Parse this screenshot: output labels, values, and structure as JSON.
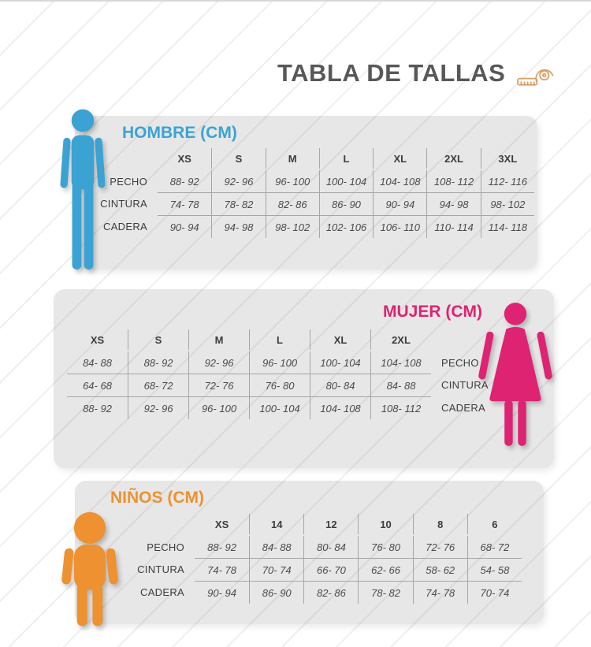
{
  "title": {
    "text": "TABLA DE TALLAS",
    "icon": "measuring-tape-icon"
  },
  "colors": {
    "men_accent": "#3AA3D3",
    "women_accent": "#DD2372",
    "kids_accent": "#EE9130",
    "panel_bg": "#e9e9e9",
    "title_text": "#58585a"
  },
  "sections": [
    {
      "id": "hombre",
      "heading": "HOMBRE (CM)",
      "figure": "man-figure-icon",
      "label_position": "left",
      "columns": [
        "XS",
        "S",
        "M",
        "L",
        "XL",
        "2XL",
        "3XL"
      ],
      "rows": [
        {
          "label": "PECHO",
          "values": [
            "88- 92",
            "92- 96",
            "96- 100",
            "100- 104",
            "104- 108",
            "108- 112",
            "112- 116"
          ]
        },
        {
          "label": "CINTURA",
          "values": [
            "74- 78",
            "78- 82",
            "82- 86",
            "86- 90",
            "90- 94",
            "94- 98",
            "98- 102"
          ]
        },
        {
          "label": "CADERA",
          "values": [
            "90- 94",
            "94- 98",
            "98- 102",
            "102- 106",
            "106- 110",
            "110- 114",
            "114- 118"
          ]
        }
      ]
    },
    {
      "id": "mujer",
      "heading": "MUJER (CM)",
      "figure": "woman-figure-icon",
      "label_position": "right",
      "columns": [
        "XS",
        "S",
        "M",
        "L",
        "XL",
        "2XL"
      ],
      "rows": [
        {
          "label": "PECHO",
          "values": [
            "84- 88",
            "88- 92",
            "92- 96",
            "96- 100",
            "100- 104",
            "104- 108"
          ]
        },
        {
          "label": "CINTURA",
          "values": [
            "64- 68",
            "68- 72",
            "72- 76",
            "76- 80",
            "80- 84",
            "84- 88"
          ]
        },
        {
          "label": "CADERA",
          "values": [
            "88- 92",
            "92- 96",
            "96- 100",
            "100- 104",
            "104- 108",
            "108- 112"
          ]
        }
      ]
    },
    {
      "id": "ninos",
      "heading": "NIÑOS (CM)",
      "figure": "child-figure-icon",
      "label_position": "left",
      "columns": [
        "XS",
        "14",
        "12",
        "10",
        "8",
        "6"
      ],
      "rows": [
        {
          "label": "PECHO",
          "values": [
            "88- 92",
            "84- 88",
            "80- 84",
            "76- 80",
            "72- 76",
            "68- 72"
          ]
        },
        {
          "label": "CINTURA",
          "values": [
            "74- 78",
            "70- 74",
            "66- 70",
            "62- 66",
            "58- 62",
            "54- 58"
          ]
        },
        {
          "label": "CADERA",
          "values": [
            "90- 94",
            "86- 90",
            "82- 86",
            "78- 82",
            "74- 78",
            "70- 74"
          ]
        }
      ]
    }
  ]
}
